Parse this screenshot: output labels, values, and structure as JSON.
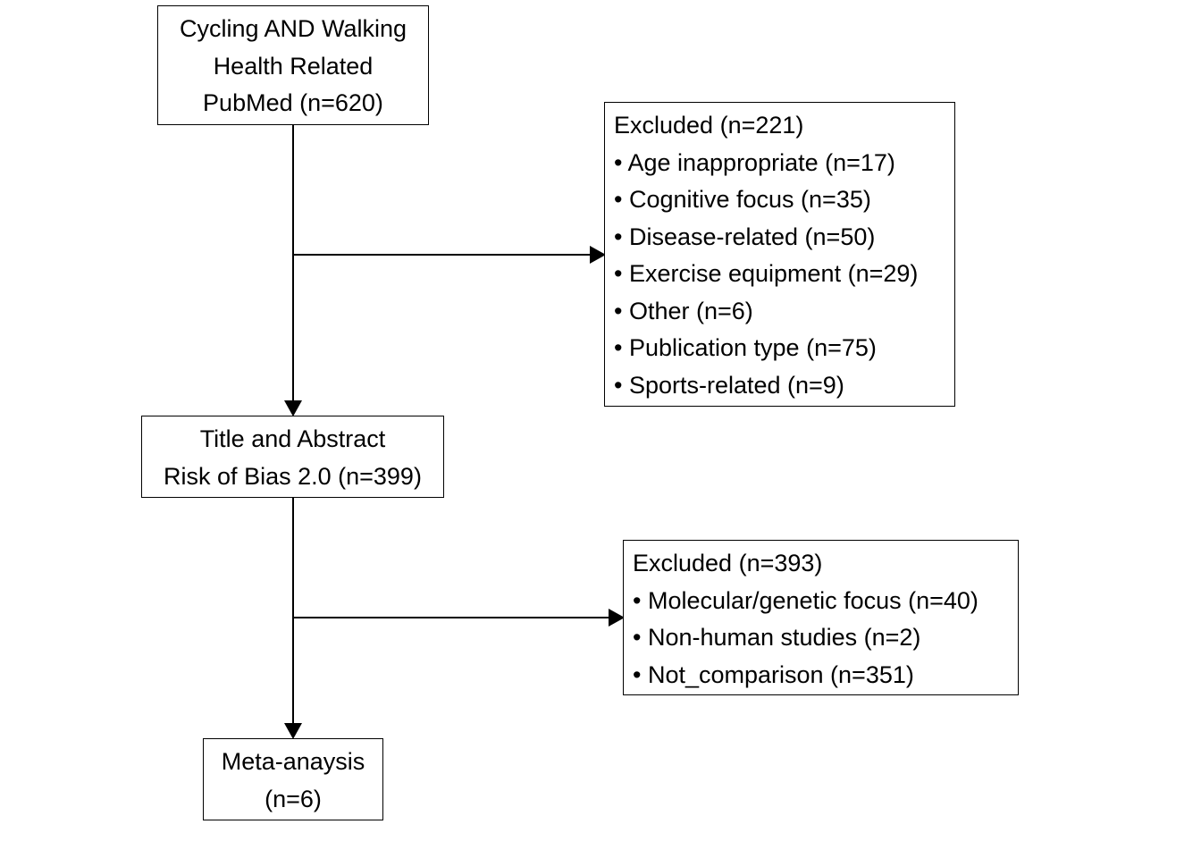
{
  "search": {
    "lines": [
      "Cycling AND Walking",
      "Health Related",
      "PubMed (n=620)"
    ]
  },
  "screening": {
    "lines": [
      "Title and Abstract",
      "Risk of Bias 2.0 (n=399)"
    ]
  },
  "meta": {
    "lines": [
      "Meta-anaysis",
      "(n=6)"
    ]
  },
  "excluded_first": {
    "title": "Excluded (n=221)",
    "items": [
      "• Age inappropriate (n=17)",
      "• Cognitive focus (n=35)",
      "• Disease-related (n=50)",
      "• Exercise equipment (n=29)",
      "• Other (n=6)",
      "• Publication type (n=75)",
      "• Sports-related (n=9)"
    ]
  },
  "excluded_second": {
    "title": "Excluded (n=393)",
    "items": [
      "• Molecular/genetic focus (n=40)",
      "• Non-human studies (n=2)",
      "• Not_comparison (n=351)"
    ]
  }
}
